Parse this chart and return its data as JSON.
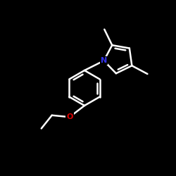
{
  "bg_color": "#000000",
  "bond_color": "#ffffff",
  "N_color": "#3333ee",
  "O_color": "#dd0000",
  "line_width": 1.8,
  "figsize": [
    2.5,
    2.5
  ],
  "dpi": 100,
  "xlim": [
    0,
    10
  ],
  "ylim": [
    0,
    10
  ]
}
